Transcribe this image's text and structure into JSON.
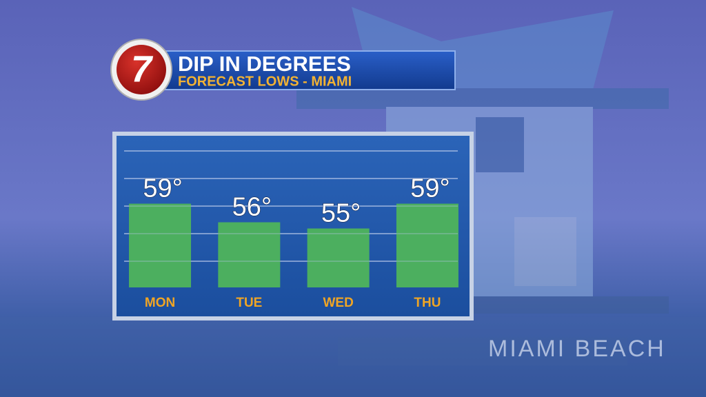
{
  "channel": "7",
  "background_sign": "MIAMI BEACH",
  "chart_data": {
    "type": "bar",
    "title": "DIP IN DEGREES",
    "subtitle": "FORECAST LOWS - MIAMI",
    "categories": [
      "MON",
      "TUE",
      "WED",
      "THU"
    ],
    "values": [
      59,
      56,
      55,
      59
    ],
    "value_labels": [
      "59°",
      "56°",
      "55°",
      "59°"
    ],
    "color": "#4caf5f",
    "ylim": [
      45.5,
      67.5
    ],
    "grid": true
  }
}
